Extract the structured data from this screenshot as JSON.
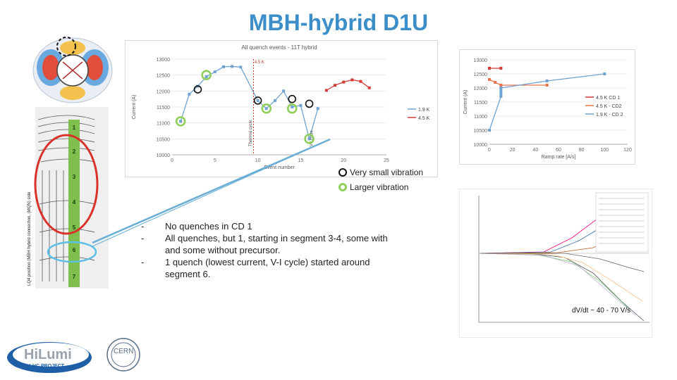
{
  "slide": {
    "title": "MBH-hybrid D1U",
    "legend": {
      "small": "Very small vibration",
      "large": "Larger vibration"
    },
    "bullets": [
      "No quenches in CD 1",
      "All quenches, but 1, starting in segment 3-4, some with and some without precursor.",
      "1 quench (lowest current, V-I cycle) started around segment 6."
    ],
    "dvdt_label": "dV/dt ~ 40 - 70 V/s",
    "logos": {
      "hilumi_text": "HiLumi",
      "hilumi_sub": "HL-LHC PROJECT",
      "cern_text": "CERN"
    },
    "coil_segments": [
      "1",
      "2",
      "3",
      "4",
      "5",
      "6",
      "7"
    ],
    "coil_side_label": "LQ4 position (MBH hybrid connection, (MQN) side"
  },
  "chart_data": [
    {
      "type": "scatter",
      "title": "All quench events - 11T hybrid",
      "xlabel": "Event number",
      "ylabel": "Current (A)",
      "xlim": [
        0,
        25
      ],
      "ylim": [
        10000,
        13000
      ],
      "xticks": [
        0,
        5,
        10,
        15,
        20,
        25
      ],
      "yticks": [
        10000,
        10500,
        11000,
        11500,
        12000,
        12500,
        13000
      ],
      "series": [
        {
          "name": "1.9 K",
          "color": "#6fa3d2",
          "x": [
            1,
            2,
            3,
            4,
            5,
            6,
            7,
            8,
            10,
            11,
            12,
            13,
            14,
            15,
            16,
            17
          ],
          "y": [
            11050,
            11900,
            12150,
            12450,
            12600,
            12760,
            12770,
            12750,
            11700,
            11450,
            11700,
            12000,
            11500,
            11550,
            10500,
            11450
          ]
        },
        {
          "name": "4.5 K",
          "color": "#d33a3a",
          "x": [
            18,
            19,
            20,
            21,
            22,
            23
          ],
          "y": [
            12020,
            12180,
            12280,
            12350,
            12300,
            12100
          ]
        }
      ],
      "annotations": [
        "4.5 K",
        "Thermal cycle",
        "V-I cycle"
      ],
      "markers": {
        "small": [
          [
            3,
            12050
          ],
          [
            10,
            11700
          ],
          [
            14,
            11750
          ],
          [
            16,
            11600
          ]
        ],
        "large": [
          [
            1,
            11050
          ],
          [
            4,
            12500
          ],
          [
            11,
            11450
          ],
          [
            14,
            11450
          ],
          [
            16,
            10500
          ]
        ]
      }
    },
    {
      "type": "line",
      "xlabel": "Ramp rate [A/s]",
      "ylabel": "Current (A)",
      "xlim": [
        0,
        120
      ],
      "ylim": [
        10000,
        13000
      ],
      "xticks": [
        0,
        20,
        40,
        60,
        80,
        100,
        120
      ],
      "yticks": [
        10000,
        10500,
        11000,
        11500,
        12000,
        12500,
        13000
      ],
      "series": [
        {
          "name": "4.5 K CD 1",
          "color": "#d33a3a",
          "x": [
            0,
            10
          ],
          "y": [
            12700,
            12700
          ]
        },
        {
          "name": "4.5 K - CD2",
          "color": "#e8734a",
          "x": [
            0,
            5,
            10,
            50
          ],
          "y": [
            12300,
            12200,
            12100,
            12100
          ]
        },
        {
          "name": "1.9 K - CD 2",
          "color": "#6fa3d2",
          "x": [
            0,
            10,
            10,
            10,
            10,
            50,
            100
          ],
          "y": [
            10500,
            11700,
            11800,
            11900,
            12000,
            12250,
            12500
          ]
        }
      ]
    }
  ]
}
